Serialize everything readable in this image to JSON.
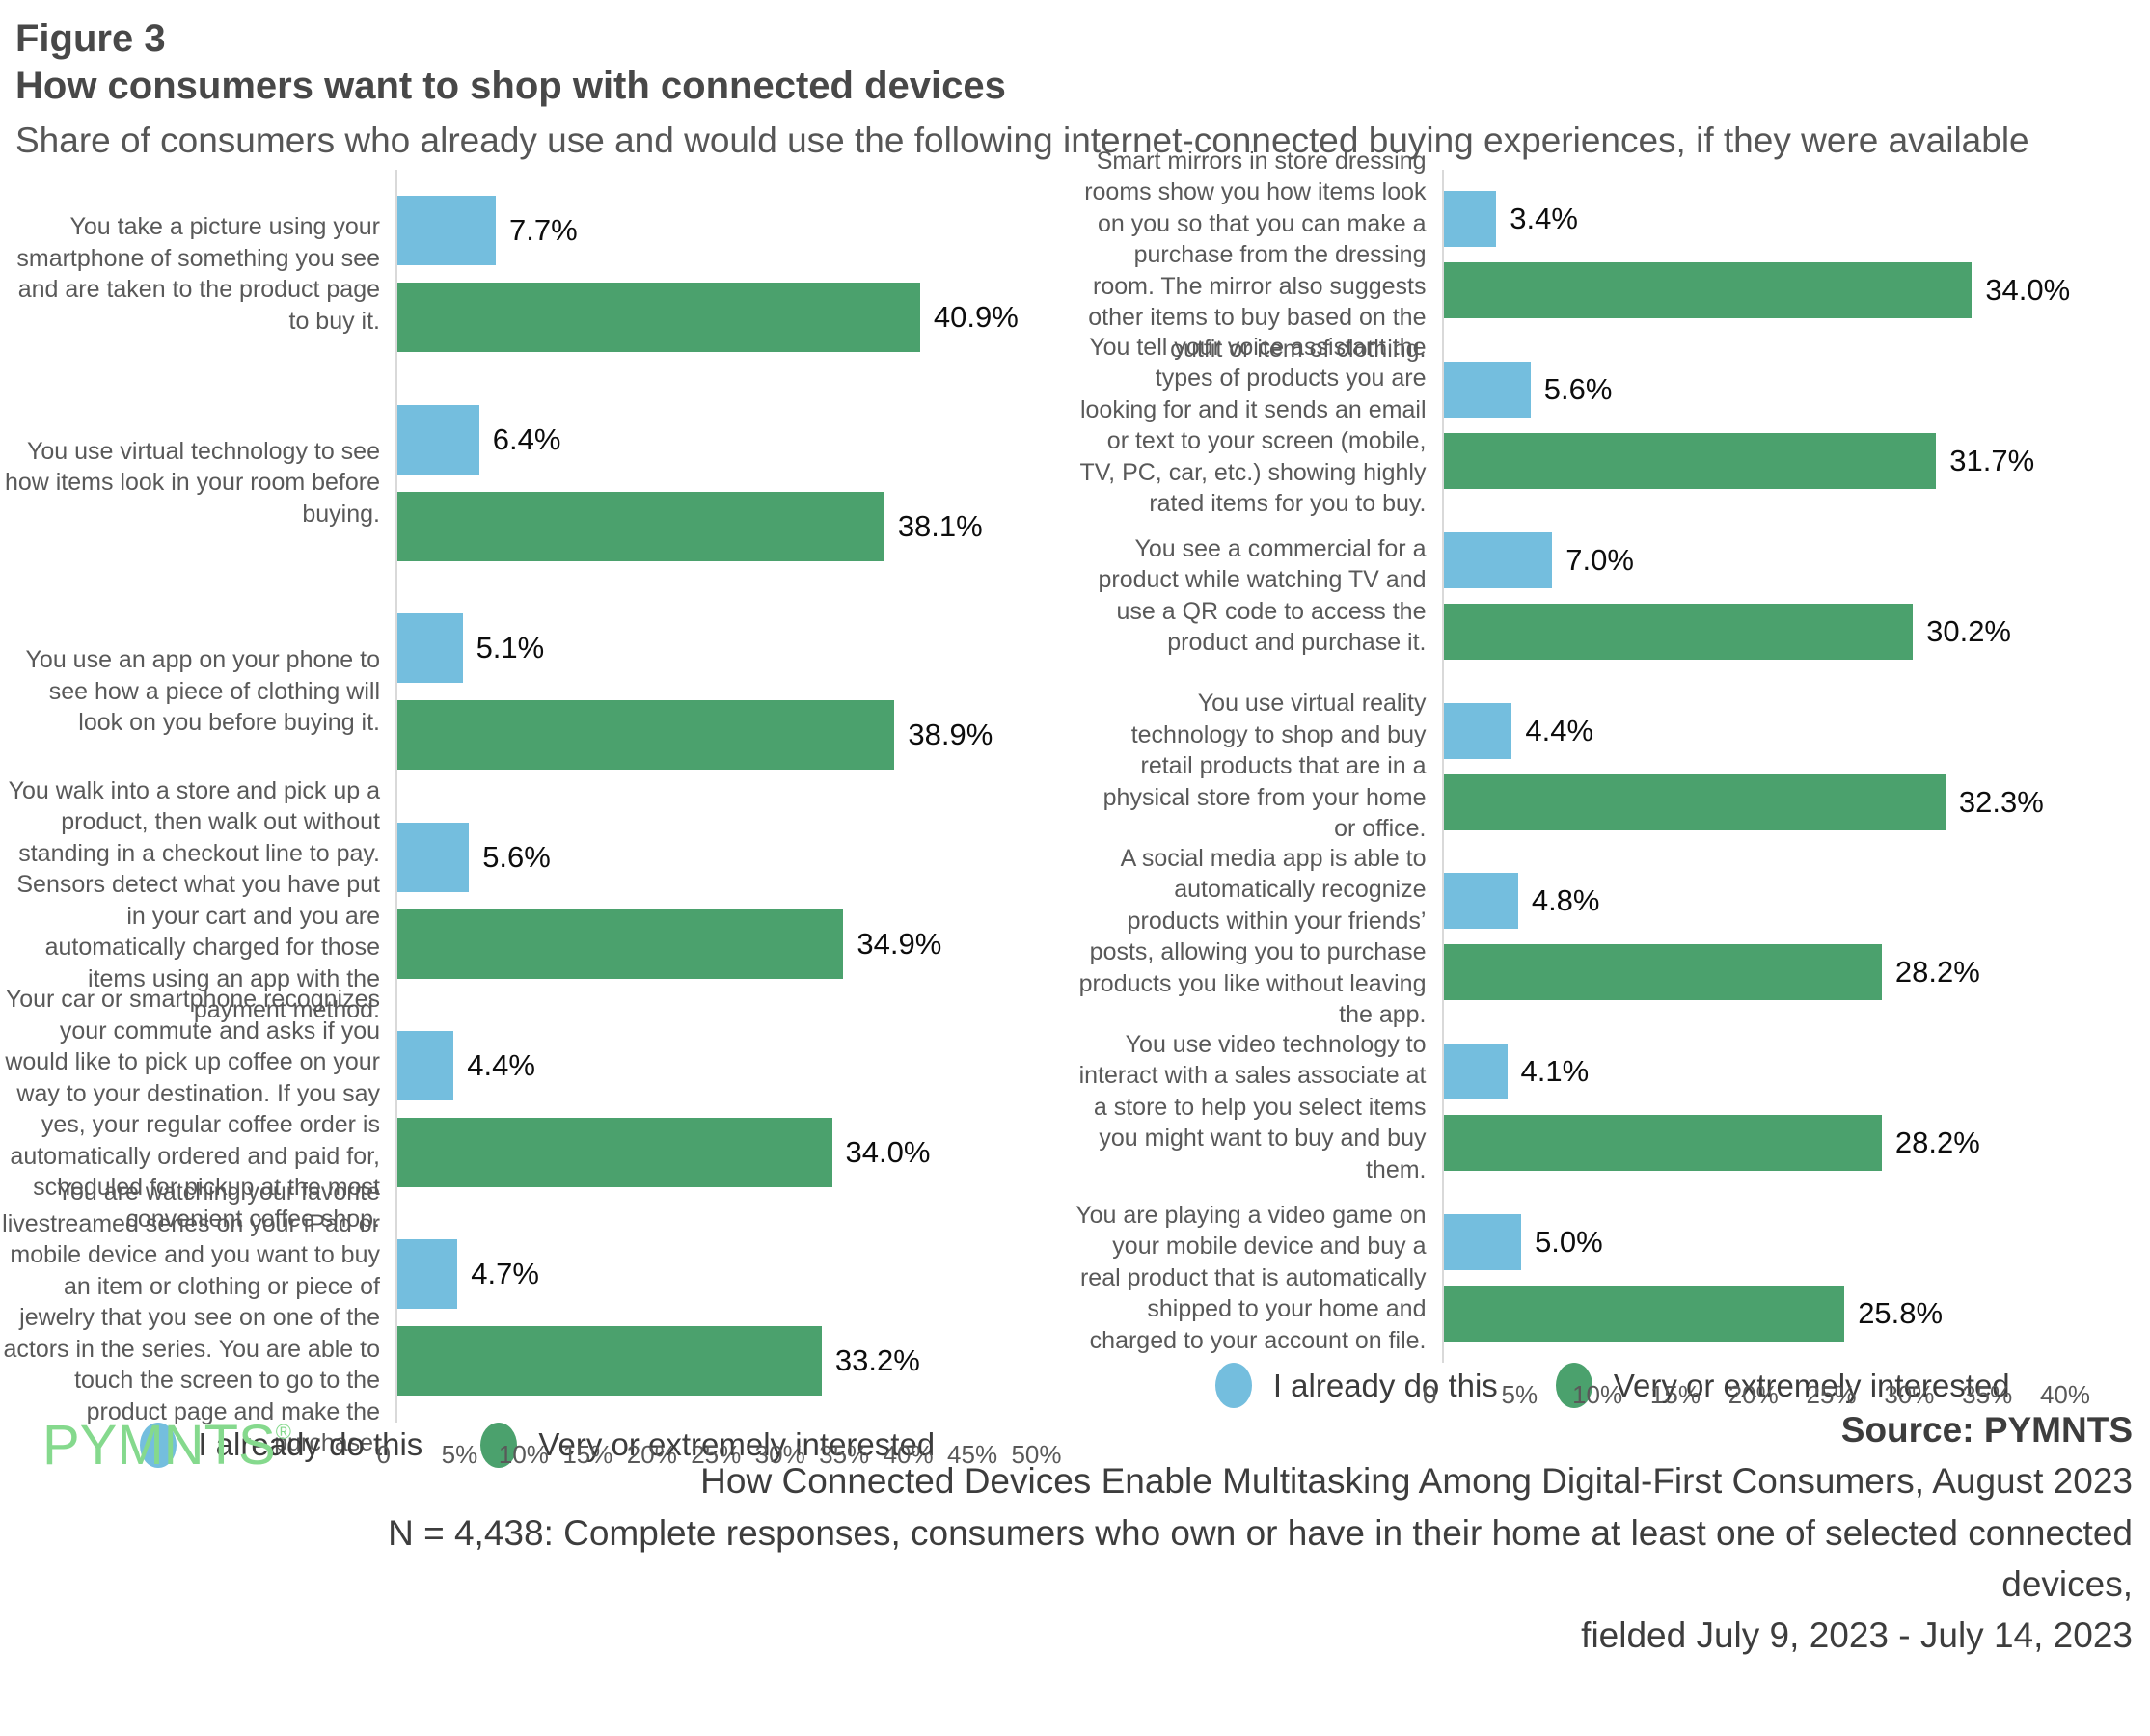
{
  "header": {
    "figure_label": "Figure 3",
    "title": "How consumers want to shop with connected devices",
    "subtitle": "Share of consumers who already use and would use the following internet-connected buying experiences, if they were available"
  },
  "legend": {
    "already": "I already do this",
    "interested": "Very or extremely interested"
  },
  "colors": {
    "already": "#74BEDE",
    "interested": "#4BA16D",
    "logo": "#85D98D",
    "axis_line": "#D9D9D9"
  },
  "chart_data": [
    {
      "type": "bar",
      "orientation": "horizontal",
      "grid": false,
      "legend_position": "bottom",
      "xlim": [
        0,
        50
      ],
      "x_ticks": [
        "0",
        "5%",
        "10%",
        "15%",
        "20%",
        "25%",
        "30%",
        "35%",
        "40%",
        "45%",
        "50%"
      ],
      "categories": [
        "You take a picture using your smartphone of something you see and are taken to the product page to buy it.",
        "You use virtual technology to see how items look in your room before buying.",
        "You use an app on your phone to see how a piece of clothing will look on you before buying it.",
        "You walk into a store and pick up a product, then walk out without standing in a checkout line to pay. Sensors detect what you have put in your cart and you are automatically charged for those items using an app with the payment method.",
        "Your car or smartphone recognizes your commute and asks if you would like to pick up coffee on your way to your destination. If you say yes, your regular coffee order is automatically ordered and paid for, scheduled for pickup at the most convenient coffee shop.",
        "You are watching your favorite livestreamed series on your iPad or mobile device and you want to buy an item or clothing or piece of jewelry that you see on one of the actors in the series. You are able to touch the screen to go to the product page and make the purchase."
      ],
      "series": [
        {
          "name": "I already do this",
          "values": [
            7.7,
            6.4,
            5.1,
            5.6,
            4.4,
            4.7
          ],
          "labels": [
            "7.7%",
            "6.4%",
            "5.1%",
            "5.6%",
            "4.4%",
            "4.7%"
          ]
        },
        {
          "name": "Very or extremely interested",
          "values": [
            40.9,
            38.1,
            38.9,
            34.9,
            34.0,
            33.2
          ],
          "labels": [
            "40.9%",
            "38.1%",
            "38.9%",
            "34.9%",
            "34.0%",
            "33.2%"
          ]
        }
      ]
    },
    {
      "type": "bar",
      "orientation": "horizontal",
      "grid": false,
      "legend_position": "bottom",
      "xlim": [
        0,
        40
      ],
      "x_ticks": [
        "0",
        "5%",
        "10%",
        "15%",
        "20%",
        "25%",
        "30%",
        "35%",
        "40%"
      ],
      "categories": [
        "Smart mirrors in store dressing rooms show you how items look on you so that you can make a purchase from the dressing room. The mirror also suggests other items to buy based on the outfit or item of clothing.",
        "You tell your voice assistant the types of products you are looking for and it sends an email or text to your screen (mobile, TV, PC, car, etc.) showing highly rated items for you to buy.",
        "You see a commercial for a product while watching TV and use a QR code to access the product and purchase it.",
        "You use virtual reality technology to shop and buy retail products that are in a physical store from your home or office.",
        "A social media app is able to automatically recognize products within your friends’ posts, allowing you to purchase products you like without leaving the app.",
        "You use video technology to interact with a sales associate at a store to help you select items you might want to buy and buy them.",
        "You are playing a video game on your mobile device and buy a real product that is automatically shipped to your home and charged to your account on file."
      ],
      "series": [
        {
          "name": "I already do this",
          "values": [
            3.4,
            5.6,
            7.0,
            4.4,
            4.8,
            4.1,
            5.0
          ],
          "labels": [
            "3.4%",
            "5.6%",
            "7.0%",
            "4.4%",
            "4.8%",
            "4.1%",
            "5.0%"
          ]
        },
        {
          "name": "Very or extremely interested",
          "values": [
            34.0,
            31.7,
            30.2,
            32.3,
            28.2,
            28.2,
            25.8
          ],
          "labels": [
            "34.0%",
            "31.7%",
            "30.2%",
            "32.3%",
            "28.2%",
            "28.2%",
            "25.8%"
          ]
        }
      ]
    }
  ],
  "footer": {
    "logo": "PYMNTS",
    "logo_reg": "®",
    "source": "Source: PYMNTS",
    "line2": "How Connected Devices Enable Multitasking Among Digital-First Consumers, August 2023",
    "line3": "N = 4,438: Complete responses, consumers who own or have in their home at least one of selected connected devices,",
    "line4": "fielded July 9, 2023 - July 14, 2023"
  }
}
